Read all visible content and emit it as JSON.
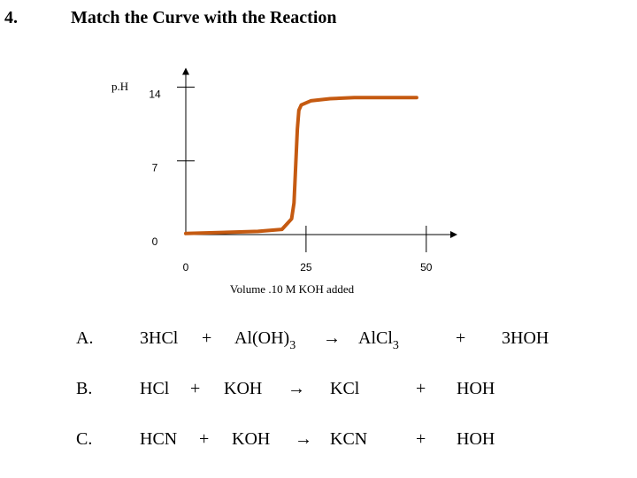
{
  "header": {
    "number": "4.",
    "title": "Match the Curve with the Reaction"
  },
  "chart_data": {
    "type": "line",
    "y_label": "p.H",
    "x_label": "Volume .10 M KOH added",
    "x": [
      0,
      15,
      20,
      21,
      22,
      22.5,
      22.7,
      23,
      23.2,
      23.5,
      24,
      26,
      30,
      35,
      48
    ],
    "values": [
      0.1,
      0.3,
      0.5,
      1,
      1.5,
      3,
      5,
      8,
      10,
      11.8,
      12.3,
      12.7,
      12.9,
      13,
      13
    ],
    "color": "#c55a11",
    "xlim": [
      0,
      55
    ],
    "ylim": [
      0,
      15
    ],
    "xticks": [
      0,
      25,
      50
    ],
    "yticks": [
      0,
      7,
      14
    ]
  },
  "reactions": [
    {
      "label": "A.",
      "terms": [
        {
          "text": "3HCl"
        },
        {
          "text": "+"
        },
        {
          "text": "Al(OH)",
          "sub": "3"
        },
        {
          "text": "→"
        },
        {
          "text": "AlCl",
          "sub": "3"
        },
        {
          "text": "+"
        },
        {
          "text": "3HOH"
        }
      ]
    },
    {
      "label": "B.",
      "terms": [
        {
          "text": "HCl"
        },
        {
          "text": "+"
        },
        {
          "text": "KOH"
        },
        {
          "text": "→"
        },
        {
          "text": "KCl"
        },
        {
          "text": "+"
        },
        {
          "text": "HOH"
        }
      ]
    },
    {
      "label": "C.",
      "terms": [
        {
          "text": "HCN"
        },
        {
          "text": "+"
        },
        {
          "text": "KOH"
        },
        {
          "text": "→"
        },
        {
          "text": "KCN"
        },
        {
          "text": "+"
        },
        {
          "text": "HOH"
        }
      ]
    }
  ]
}
